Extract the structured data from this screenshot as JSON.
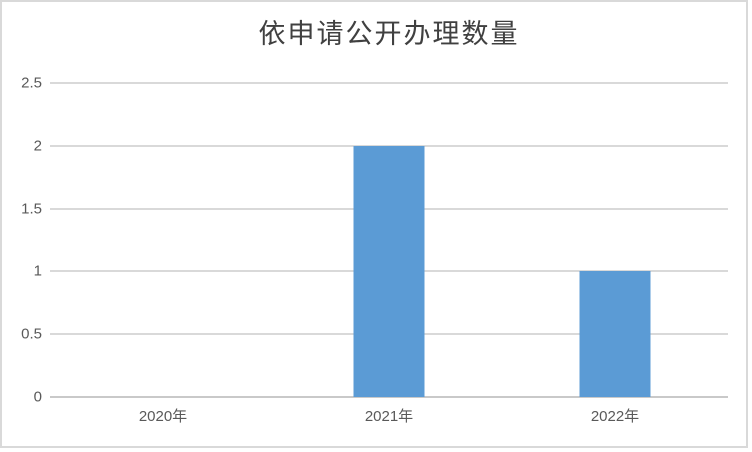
{
  "chart_data": {
    "type": "bar",
    "title": "依申请公开办理数量",
    "categories": [
      "2020年",
      "2021年",
      "2022年"
    ],
    "values": [
      0,
      2,
      1
    ],
    "xlabel": "",
    "ylabel": "",
    "ylim": [
      0,
      2.5
    ],
    "y_ticks": [
      0,
      0.5,
      1,
      1.5,
      2,
      2.5
    ],
    "y_tick_labels": [
      "0",
      "0.5",
      "1",
      "1.5",
      "2",
      "2.5"
    ],
    "grid": true,
    "legend_position": "none",
    "bar_color": "#5B9BD5",
    "gridline_color": "#D9D9D9",
    "axis_line_color": "#C9C9C9",
    "axis_text_color": "#595959",
    "title_color": "#404040",
    "frame_border_color": "#D9D9D9",
    "background_color": "#FFFFFF"
  }
}
